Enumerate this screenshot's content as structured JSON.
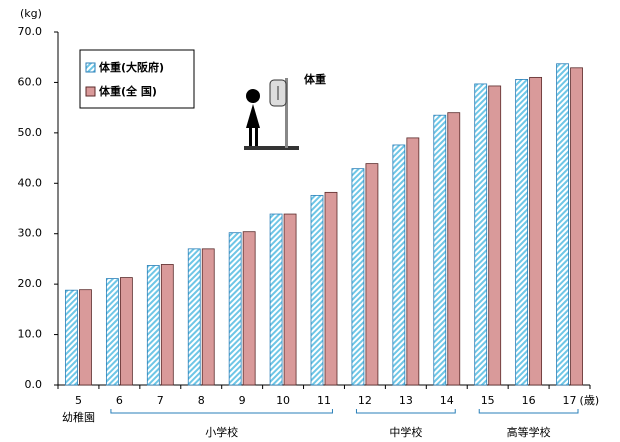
{
  "chart_data": {
    "type": "bar",
    "y_unit": "(kg)",
    "x_unit": "(歳)",
    "annotation": "体重",
    "categories": [
      "5",
      "6",
      "7",
      "8",
      "9",
      "10",
      "11",
      "12",
      "13",
      "14",
      "15",
      "16",
      "17"
    ],
    "groups": [
      "幼稚園",
      "小学校",
      "中学校",
      "高等学校"
    ],
    "series": [
      {
        "name": "体重(大阪府)",
        "color": "#6ec6e6",
        "values": [
          18.8,
          21.1,
          23.7,
          27.0,
          30.2,
          33.9,
          37.6,
          42.9,
          47.6,
          53.5,
          59.7,
          60.6,
          63.7
        ]
      },
      {
        "name": "体重(全 国)",
        "color": "#d99a9a",
        "values": [
          18.9,
          21.3,
          23.9,
          27.0,
          30.4,
          33.9,
          38.2,
          43.9,
          49.0,
          54.0,
          59.3,
          61.0,
          62.9
        ]
      }
    ],
    "ylim": [
      0,
      70
    ],
    "yticks": [
      {
        "value": 0,
        "label": "0.0"
      },
      {
        "value": 10,
        "label": "10.0"
      },
      {
        "value": 20,
        "label": "20.0"
      },
      {
        "value": 30,
        "label": "30.0"
      },
      {
        "value": 40,
        "label": "40.0"
      },
      {
        "value": 50,
        "label": "50.0"
      },
      {
        "value": 60,
        "label": "60.0"
      },
      {
        "value": 70,
        "label": "70.0"
      }
    ],
    "grid": false,
    "legend": "upper left"
  }
}
